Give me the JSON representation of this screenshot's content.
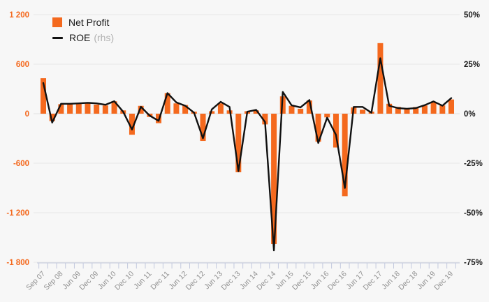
{
  "legend": {
    "net_profit_label": "Net Profit",
    "roe_label": "ROE",
    "roe_suffix": "(rhs)"
  },
  "colors": {
    "bar": "#F4691E",
    "line": "#111111",
    "left_axis_text": "#F4691E",
    "right_axis_text": "#1a1a1a",
    "grid": "#e7e7e7",
    "zero_grid": "#e0e0e0",
    "axis_tick": "#c3c9de",
    "x_label_text": "#8f8f8f",
    "background": "#f7f7f7"
  },
  "chart_data": {
    "type": "bar+line",
    "title": "",
    "legend_position": "top-left",
    "grid": true,
    "left_axis": {
      "tick_labels": [
        "1 200",
        "600",
        "0",
        "-600",
        "-1 200",
        "-1 800"
      ],
      "tick_values": [
        1200,
        600,
        0,
        -600,
        -1200,
        -1800
      ],
      "range": [
        -1800,
        1200
      ],
      "series": "Net Profit"
    },
    "right_axis": {
      "tick_labels": [
        "50%",
        "25%",
        "0%",
        "-25%",
        "-50%",
        "-75%"
      ],
      "tick_values": [
        50,
        25,
        0,
        -25,
        -50,
        -75
      ],
      "range": [
        -75,
        50
      ],
      "series": "ROE (rhs)"
    },
    "x_labels": [
      "Sep 07",
      "Sep 08",
      "Jun 09",
      "Dec 09",
      "Jun 10",
      "Dec 10",
      "Jun 11",
      "Dec 11",
      "Jun 12",
      "Dec 12",
      "Jun 13",
      "Dec 13",
      "Jun 14",
      "Dec 14",
      "Jun 15",
      "Dec 15",
      "Jun 16",
      "Dec 16",
      "Jun 17",
      "Dec 17",
      "Jun 18",
      "Dec 18",
      "Jun 19",
      "Dec 19"
    ],
    "label_every": 2,
    "series": [
      {
        "name": "Net Profit",
        "type": "bar",
        "axis": "left",
        "values": [
          430,
          -90,
          115,
          120,
          120,
          125,
          110,
          100,
          150,
          40,
          -255,
          95,
          -40,
          -115,
          250,
          125,
          105,
          25,
          -330,
          30,
          125,
          40,
          -710,
          30,
          40,
          -130,
          -1580,
          210,
          95,
          60,
          160,
          -340,
          -45,
          -410,
          -1000,
          76,
          48,
          25,
          855,
          120,
          82,
          68,
          80,
          100,
          140,
          100,
          172
        ]
      },
      {
        "name": "ROE",
        "type": "line",
        "axis": "right",
        "values": [
          15.5,
          -4.5,
          5.0,
          5.0,
          5.2,
          5.5,
          5.2,
          4.5,
          6.3,
          1.0,
          -8.0,
          3.5,
          -1.0,
          -3.6,
          10.4,
          5.7,
          4.0,
          0.5,
          -12.4,
          2.2,
          6.0,
          3.4,
          -29.0,
          1.0,
          1.9,
          -4.2,
          -69.0,
          11.0,
          4.2,
          3.2,
          6.9,
          -14.8,
          -2.0,
          -10.7,
          -37.5,
          3.4,
          3.4,
          0.5,
          28.0,
          4.0,
          2.8,
          2.5,
          2.8,
          4.3,
          6.2,
          4.0,
          7.9
        ]
      }
    ]
  }
}
